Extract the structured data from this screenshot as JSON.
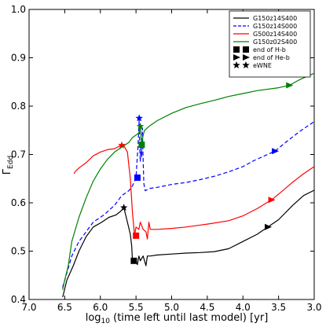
{
  "chart_data": {
    "type": "line",
    "xlabel_log": "log",
    "xlabel_sub": "10",
    "xlabel_rest": " (time left until last model) [yr]",
    "ylabel_main": "Γ",
    "ylabel_sub": "Edd",
    "xlim": [
      7.0,
      3.0
    ],
    "ylim": [
      0.4,
      1.0
    ],
    "xticks": [
      7.0,
      6.5,
      6.0,
      5.5,
      5.0,
      4.5,
      4.0,
      3.5,
      3.0
    ],
    "xtick_labels": [
      "7.0",
      "6.5",
      "6.0",
      "5.5",
      "5.0",
      "4.5",
      "4.0",
      "3.5",
      "3.0"
    ],
    "yticks": [
      0.4,
      0.5,
      0.6,
      0.7,
      0.8,
      0.9,
      1.0
    ],
    "ytick_labels": [
      "0.4",
      "0.5",
      "0.6",
      "0.7",
      "0.8",
      "0.9",
      "1.0"
    ],
    "legend_position": "top-right",
    "series": [
      {
        "name": "G150z14S400",
        "color": "#000000",
        "dash": "solid",
        "points": [
          [
            6.53,
            0.405
          ],
          [
            6.52,
            0.41
          ],
          [
            6.47,
            0.44
          ],
          [
            6.38,
            0.47
          ],
          [
            6.3,
            0.5
          ],
          [
            6.2,
            0.53
          ],
          [
            6.1,
            0.55
          ],
          [
            5.98,
            0.56
          ],
          [
            5.88,
            0.57
          ],
          [
            5.78,
            0.575
          ],
          [
            5.72,
            0.582
          ],
          [
            5.67,
            0.59
          ],
          [
            5.62,
            0.56
          ],
          [
            5.58,
            0.535
          ],
          [
            5.56,
            0.51
          ],
          [
            5.55,
            0.48
          ],
          [
            5.52,
            0.485
          ],
          [
            5.48,
            0.472
          ],
          [
            5.46,
            0.49
          ],
          [
            5.44,
            0.48
          ],
          [
            5.42,
            0.485
          ],
          [
            5.4,
            0.49
          ],
          [
            5.38,
            0.48
          ],
          [
            5.36,
            0.47
          ],
          [
            5.34,
            0.49
          ],
          [
            5.3,
            0.49
          ],
          [
            5.2,
            0.492
          ],
          [
            5.0,
            0.494
          ],
          [
            4.8,
            0.496
          ],
          [
            4.6,
            0.497
          ],
          [
            4.4,
            0.499
          ],
          [
            4.2,
            0.505
          ],
          [
            4.0,
            0.52
          ],
          [
            3.8,
            0.535
          ],
          [
            3.65,
            0.55
          ],
          [
            3.5,
            0.565
          ],
          [
            3.3,
            0.595
          ],
          [
            3.15,
            0.615
          ],
          [
            3.0,
            0.626
          ]
        ],
        "markers": [
          {
            "type": "eWNE",
            "x": 5.67,
            "y": 0.59
          },
          {
            "type": "end of H-b",
            "x": 5.53,
            "y": 0.48
          },
          {
            "type": "end of He-b",
            "x": 3.65,
            "y": 0.55
          }
        ]
      },
      {
        "name": "G150z14S000",
        "color": "#0000ff",
        "dash": "dashed",
        "points": [
          [
            6.53,
            0.425
          ],
          [
            6.48,
            0.45
          ],
          [
            6.4,
            0.49
          ],
          [
            6.3,
            0.52
          ],
          [
            6.2,
            0.54
          ],
          [
            6.1,
            0.56
          ],
          [
            5.95,
            0.575
          ],
          [
            5.8,
            0.595
          ],
          [
            5.7,
            0.615
          ],
          [
            5.6,
            0.625
          ],
          [
            5.55,
            0.635
          ],
          [
            5.5,
            0.652
          ],
          [
            5.47,
            0.72
          ],
          [
            5.455,
            0.775
          ],
          [
            5.445,
            0.705
          ],
          [
            5.44,
            0.685
          ],
          [
            5.43,
            0.72
          ],
          [
            5.42,
            0.695
          ],
          [
            5.41,
            0.755
          ],
          [
            5.4,
            0.69
          ],
          [
            5.39,
            0.64
          ],
          [
            5.37,
            0.625
          ],
          [
            5.3,
            0.63
          ],
          [
            5.2,
            0.632
          ],
          [
            5.1,
            0.635
          ],
          [
            5.0,
            0.638
          ],
          [
            4.8,
            0.642
          ],
          [
            4.6,
            0.648
          ],
          [
            4.4,
            0.655
          ],
          [
            4.2,
            0.664
          ],
          [
            4.0,
            0.675
          ],
          [
            3.85,
            0.687
          ],
          [
            3.7,
            0.697
          ],
          [
            3.55,
            0.707
          ],
          [
            3.4,
            0.725
          ],
          [
            3.2,
            0.748
          ],
          [
            3.0,
            0.768
          ]
        ],
        "markers": [
          {
            "type": "eWNE",
            "x": 5.455,
            "y": 0.775
          },
          {
            "type": "end of H-b",
            "x": 5.48,
            "y": 0.652
          },
          {
            "type": "end of He-b",
            "x": 3.55,
            "y": 0.707
          }
        ]
      },
      {
        "name": "G500z14S400",
        "color": "#ff0000",
        "dash": "solid",
        "points": [
          [
            6.37,
            0.66
          ],
          [
            6.35,
            0.665
          ],
          [
            6.3,
            0.672
          ],
          [
            6.2,
            0.683
          ],
          [
            6.1,
            0.697
          ],
          [
            6.0,
            0.705
          ],
          [
            5.9,
            0.71
          ],
          [
            5.8,
            0.712
          ],
          [
            5.72,
            0.718
          ],
          [
            5.67,
            0.718
          ],
          [
            5.62,
            0.705
          ],
          [
            5.58,
            0.65
          ],
          [
            5.55,
            0.58
          ],
          [
            5.52,
            0.532
          ],
          [
            5.5,
            0.55
          ],
          [
            5.46,
            0.545
          ],
          [
            5.44,
            0.56
          ],
          [
            5.4,
            0.545
          ],
          [
            5.36,
            0.54
          ],
          [
            5.34,
            0.525
          ],
          [
            5.32,
            0.56
          ],
          [
            5.3,
            0.545
          ],
          [
            5.2,
            0.545
          ],
          [
            5.0,
            0.547
          ],
          [
            4.8,
            0.55
          ],
          [
            4.5,
            0.556
          ],
          [
            4.2,
            0.563
          ],
          [
            4.0,
            0.573
          ],
          [
            3.8,
            0.588
          ],
          [
            3.6,
            0.606
          ],
          [
            3.45,
            0.624
          ],
          [
            3.3,
            0.643
          ],
          [
            3.15,
            0.66
          ],
          [
            3.0,
            0.675
          ]
        ],
        "markers": [
          {
            "type": "eWNE",
            "x": 5.7,
            "y": 0.719
          },
          {
            "type": "end of H-b",
            "x": 5.5,
            "y": 0.532
          },
          {
            "type": "end of He-b",
            "x": 3.6,
            "y": 0.606
          }
        ]
      },
      {
        "name": "G150z02S400",
        "color": "#008000",
        "dash": "solid",
        "points": [
          [
            6.53,
            0.42
          ],
          [
            6.5,
            0.44
          ],
          [
            6.45,
            0.47
          ],
          [
            6.4,
            0.52
          ],
          [
            6.3,
            0.57
          ],
          [
            6.2,
            0.61
          ],
          [
            6.1,
            0.645
          ],
          [
            6.0,
            0.67
          ],
          [
            5.9,
            0.69
          ],
          [
            5.8,
            0.705
          ],
          [
            5.7,
            0.715
          ],
          [
            5.6,
            0.725
          ],
          [
            5.55,
            0.735
          ],
          [
            5.5,
            0.74
          ],
          [
            5.46,
            0.745
          ],
          [
            5.44,
            0.758
          ],
          [
            5.42,
            0.72
          ],
          [
            5.4,
            0.74
          ],
          [
            5.38,
            0.75
          ],
          [
            5.3,
            0.76
          ],
          [
            5.2,
            0.77
          ],
          [
            5.0,
            0.785
          ],
          [
            4.8,
            0.797
          ],
          [
            4.6,
            0.805
          ],
          [
            4.4,
            0.812
          ],
          [
            4.2,
            0.82
          ],
          [
            4.0,
            0.826
          ],
          [
            3.8,
            0.832
          ],
          [
            3.5,
            0.838
          ],
          [
            3.35,
            0.843
          ],
          [
            3.2,
            0.855
          ],
          [
            3.0,
            0.868
          ]
        ],
        "markers": [
          {
            "type": "eWNE",
            "x": 5.44,
            "y": 0.758
          },
          {
            "type": "end of H-b",
            "x": 5.42,
            "y": 0.72
          },
          {
            "type": "end of He-b",
            "x": 3.35,
            "y": 0.843
          }
        ]
      }
    ],
    "marker_legend": [
      {
        "type": "end of H-b",
        "label": "end of H-b"
      },
      {
        "type": "end of He-b",
        "label": "end of He-b"
      },
      {
        "type": "eWNE",
        "label": "eWNE"
      }
    ]
  }
}
